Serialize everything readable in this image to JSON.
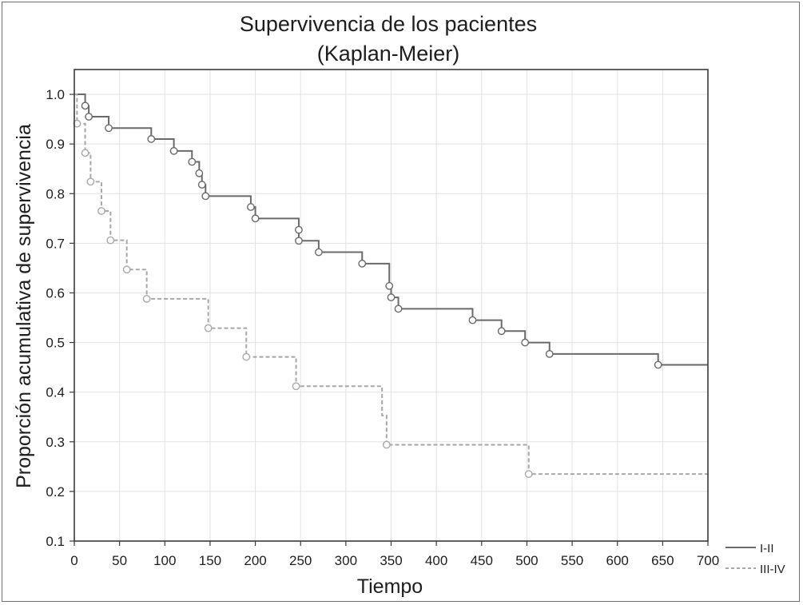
{
  "chart_data": {
    "type": "line",
    "title": "Supervivencia de los pacientes",
    "subtitle": "(Kaplan-Meier)",
    "xlabel": "Tiempo",
    "ylabel": "Proporción acumulativa de supervivencia",
    "xlim": [
      0,
      700
    ],
    "ylim": [
      0.1,
      1.05
    ],
    "x_ticks": [
      0,
      50,
      100,
      150,
      200,
      250,
      300,
      350,
      400,
      450,
      500,
      550,
      600,
      650,
      700
    ],
    "y_ticks": [
      0.1,
      0.2,
      0.3,
      0.4,
      0.5,
      0.6,
      0.7,
      0.8,
      0.9,
      1.0
    ],
    "y_tick_labels": [
      "0.1",
      "0.2",
      "0.3",
      "0.4",
      "0.5",
      "0.6",
      "0.7",
      "0.8",
      "0.9",
      "1.0"
    ],
    "grid": true,
    "legend_position": "bottom-right",
    "series": [
      {
        "name": "I-II",
        "style": "solid",
        "color": "#6a6a6a",
        "steps": [
          [
            0,
            1.0
          ],
          [
            12,
            0.977
          ],
          [
            16,
            0.955
          ],
          [
            38,
            0.932
          ],
          [
            85,
            0.91
          ],
          [
            110,
            0.886
          ],
          [
            130,
            0.864
          ],
          [
            138,
            0.841
          ],
          [
            141,
            0.818
          ],
          [
            145,
            0.795
          ],
          [
            195,
            0.773
          ],
          [
            200,
            0.75
          ],
          [
            248,
            0.705
          ],
          [
            270,
            0.682
          ],
          [
            318,
            0.659
          ],
          [
            348,
            0.614
          ],
          [
            350,
            0.591
          ],
          [
            358,
            0.568
          ],
          [
            440,
            0.545
          ],
          [
            472,
            0.523
          ],
          [
            498,
            0.5
          ],
          [
            525,
            0.477
          ],
          [
            645,
            0.455
          ],
          [
            700,
            0.455
          ]
        ],
        "censored": [
          [
            12,
            0.977
          ],
          [
            16,
            0.955
          ],
          [
            38,
            0.932
          ],
          [
            85,
            0.91
          ],
          [
            110,
            0.886
          ],
          [
            130,
            0.864
          ],
          [
            138,
            0.841
          ],
          [
            141,
            0.818
          ],
          [
            145,
            0.795
          ],
          [
            195,
            0.773
          ],
          [
            200,
            0.75
          ],
          [
            248,
            0.727
          ],
          [
            248,
            0.705
          ],
          [
            270,
            0.682
          ],
          [
            318,
            0.659
          ],
          [
            348,
            0.614
          ],
          [
            350,
            0.591
          ],
          [
            358,
            0.568
          ],
          [
            440,
            0.545
          ],
          [
            472,
            0.523
          ],
          [
            498,
            0.5
          ],
          [
            525,
            0.477
          ],
          [
            645,
            0.455
          ]
        ]
      },
      {
        "name": "III-IV",
        "style": "dashed",
        "color": "#a8a8a8",
        "steps": [
          [
            0,
            1.0
          ],
          [
            3,
            0.941
          ],
          [
            12,
            0.882
          ],
          [
            18,
            0.824
          ],
          [
            30,
            0.765
          ],
          [
            40,
            0.706
          ],
          [
            58,
            0.647
          ],
          [
            80,
            0.588
          ],
          [
            148,
            0.529
          ],
          [
            190,
            0.471
          ],
          [
            245,
            0.412
          ],
          [
            340,
            0.353
          ],
          [
            345,
            0.294
          ],
          [
            502,
            0.235
          ],
          [
            700,
            0.235
          ]
        ],
        "censored": [
          [
            3,
            0.941
          ],
          [
            12,
            0.882
          ],
          [
            18,
            0.824
          ],
          [
            30,
            0.765
          ],
          [
            40,
            0.706
          ],
          [
            58,
            0.647
          ],
          [
            80,
            0.588
          ],
          [
            148,
            0.529
          ],
          [
            190,
            0.471
          ],
          [
            245,
            0.412
          ],
          [
            345,
            0.294
          ],
          [
            502,
            0.235
          ]
        ]
      }
    ]
  }
}
